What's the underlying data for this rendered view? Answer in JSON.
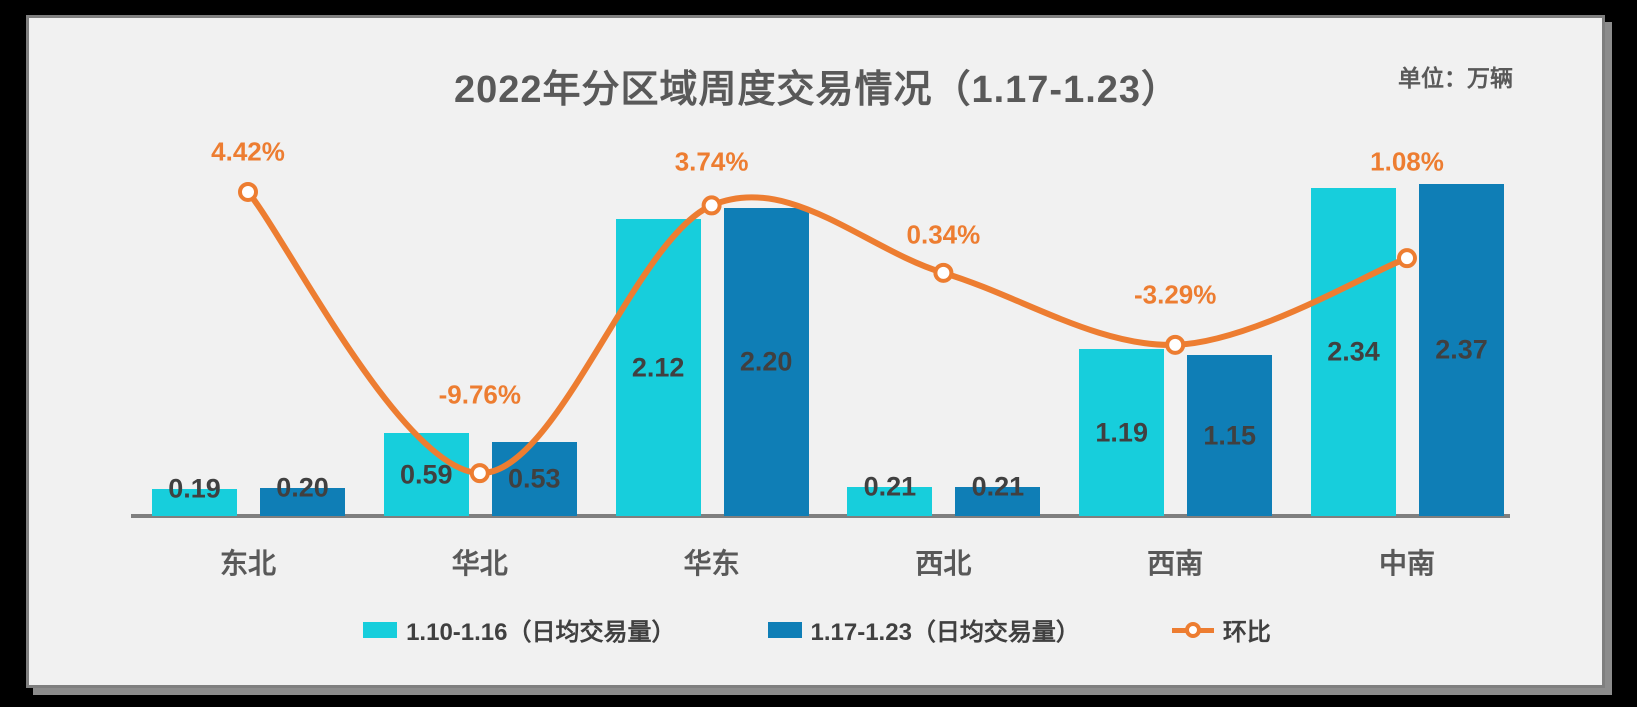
{
  "header": {
    "title": "2022年分区域周度交易情况（1.17-1.23）",
    "unit_label": "单位：万辆"
  },
  "chart_data": {
    "type": "bar",
    "subtype": "grouped-bars-with-line-overlay",
    "title": "2022年分区域周度交易情况（1.17-1.23）",
    "unit": "万辆",
    "categories": [
      "东北",
      "华北",
      "华东",
      "西北",
      "西南",
      "中南"
    ],
    "series": [
      {
        "name": "1.10-1.16（日均交易量）",
        "type": "bar",
        "color": "#17CEDC",
        "values": [
          0.19,
          0.59,
          2.12,
          0.21,
          1.19,
          2.34
        ],
        "labels": [
          "0.19",
          "0.59",
          "2.12",
          "0.21",
          "1.19",
          "2.34"
        ]
      },
      {
        "name": "1.17-1.23（日均交易量）",
        "type": "bar",
        "color": "#0F7EB6",
        "values": [
          0.2,
          0.53,
          2.2,
          0.21,
          1.15,
          2.37
        ],
        "labels": [
          "0.20",
          "0.53",
          "2.20",
          "0.21",
          "1.15",
          "2.37"
        ]
      },
      {
        "name": "环比",
        "type": "line",
        "color": "#ED7D31",
        "values": [
          4.42,
          -9.76,
          3.74,
          0.34,
          -3.29,
          1.08
        ],
        "labels": [
          "4.42%",
          "-9.76%",
          "3.74%",
          "0.34%",
          "-3.29%",
          "1.08%"
        ]
      }
    ],
    "xlabel": "",
    "ylabel": "",
    "bar_axis_range": [
      0,
      2.5
    ],
    "line_axis_range_pct": [
      -12,
      6
    ],
    "gridlines": false,
    "value_axis_visible": false,
    "data_labels": true,
    "legend_position": "bottom"
  },
  "legend": {
    "items": [
      {
        "label": "1.10-1.16（日均交易量）",
        "swatch": "cyan-rect"
      },
      {
        "label": "1.17-1.23（日均交易量）",
        "swatch": "blue-rect"
      },
      {
        "label": "环比",
        "swatch": "orange-line-marker"
      }
    ]
  }
}
